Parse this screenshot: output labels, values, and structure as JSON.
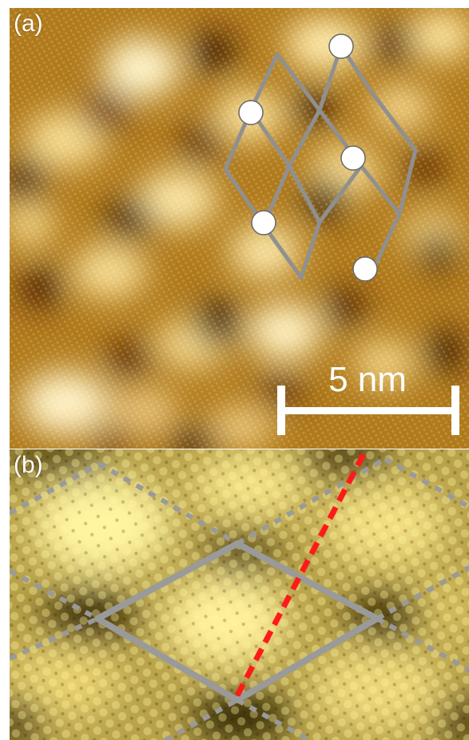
{
  "panel_a": {
    "label": "(a)",
    "scale_bar": {
      "text": "5 nm"
    },
    "colors": {
      "dark": "#3a1300",
      "mid": "#b07a1a",
      "bright": "#fff4c8",
      "overlay": "#909090"
    }
  },
  "panel_b": {
    "label": "(b)",
    "colors": {
      "dark": "#2a2000",
      "mid": "#b8a24a",
      "bright": "#fff8a0",
      "overlay": "#909090",
      "line_cut": "#ff1a1a"
    }
  }
}
